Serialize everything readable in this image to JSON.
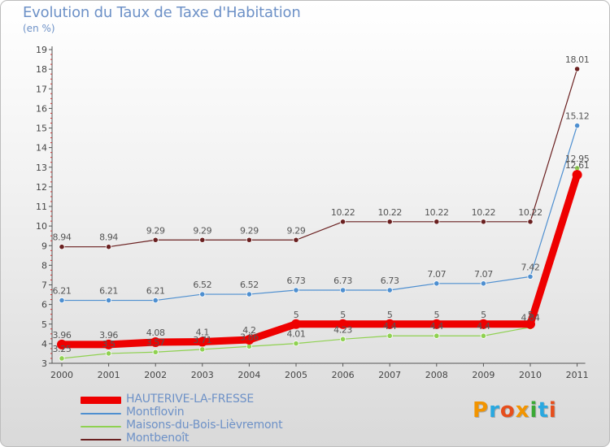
{
  "title": "Evolution du Taux de Taxe d'Habitation",
  "unit_label": "(en %)",
  "logo": {
    "text": "Proxiti",
    "colors": [
      "#f29400",
      "#29a8e0",
      "#e64e1c",
      "#f29400",
      "#3aa935",
      "#29a8e0",
      "#e64e1c"
    ]
  },
  "chart_data": {
    "type": "line",
    "title": "Evolution du Taux de Taxe d'Habitation",
    "ylabel": "(en %)",
    "xlabel": "",
    "categories": [
      "2000",
      "2001",
      "2002",
      "2003",
      "2004",
      "2005",
      "2006",
      "2007",
      "2008",
      "2009",
      "2010",
      "2011"
    ],
    "ylim": [
      3,
      19
    ],
    "yticks": [
      3,
      4,
      5,
      6,
      7,
      8,
      9,
      10,
      11,
      12,
      13,
      14,
      15,
      16,
      17,
      18,
      19
    ],
    "grid": false,
    "legend_position": "bottom-left",
    "series": [
      {
        "name": "HAUTERIVE-LA-FRESSE",
        "color": "#ee0000",
        "emphasis": true,
        "values": [
          3.96,
          3.96,
          4.08,
          4.1,
          4.2,
          5,
          5,
          5,
          5,
          5,
          5,
          12.61
        ],
        "labels": [
          "3.96",
          "3.96",
          "4.08",
          "4.1",
          "4.2",
          "5",
          "5",
          "5",
          "5",
          "5",
          "5",
          "12.61"
        ]
      },
      {
        "name": "Montflovin",
        "color": "#4e8fd0",
        "values": [
          6.21,
          6.21,
          6.21,
          6.52,
          6.52,
          6.73,
          6.73,
          6.73,
          7.07,
          7.07,
          7.42,
          15.12
        ],
        "labels": [
          "6.21",
          "6.21",
          "6.21",
          "6.52",
          "6.52",
          "6.73",
          "6.73",
          "6.73",
          "7.07",
          "7.07",
          "7.42",
          "15.12"
        ]
      },
      {
        "name": "Maisons-du-Bois-Lièvremont",
        "color": "#8fd151",
        "values": [
          3.25,
          3.5,
          3.57,
          3.71,
          3.86,
          4.01,
          4.23,
          4.4,
          4.4,
          4.4,
          4.84,
          12.95
        ],
        "labels": [
          "3.25",
          "3.5",
          "3.57",
          "3.71",
          "3.86",
          "4.01",
          "4.23",
          "4.4",
          "4.4",
          "4.4",
          "4.84",
          "12.95"
        ]
      },
      {
        "name": "Montbenoît",
        "color": "#6a2020",
        "values": [
          8.94,
          8.94,
          9.29,
          9.29,
          9.29,
          9.29,
          10.22,
          10.22,
          10.22,
          10.22,
          10.22,
          18.01
        ],
        "labels": [
          "8.94",
          "8.94",
          "9.29",
          "9.29",
          "9.29",
          "9.29",
          "10.22",
          "10.22",
          "10.22",
          "10.22",
          "10.22",
          "18.01"
        ]
      }
    ]
  }
}
